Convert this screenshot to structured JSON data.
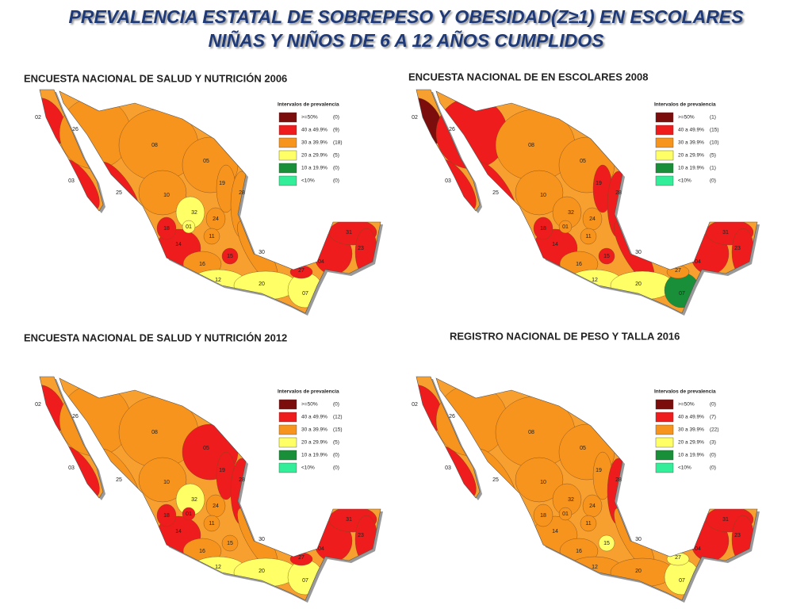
{
  "header": {
    "title_line1": "PREVALENCIA ESTATAL DE SOBREPESO Y OBESIDAD(Z≥1) EN  ESCOLARES",
    "title_line2": "NIÑAS Y NIÑOS DE 6 A 12 AÑOS CUMPLIDOS"
  },
  "maps": [
    {
      "title": "ENCUESTA NACIONAL DE SALUD Y NUTRICIÓN 2006",
      "legend_title": "Intervalos de prevalencia",
      "legend": [
        {
          "label": ">=50%",
          "count": "(0)",
          "color": "#7b0d0d"
        },
        {
          "label": "40 a 49.9%",
          "count": "(9)",
          "color": "#ee1c1c"
        },
        {
          "label": "30 a 39.9%",
          "count": "(18)",
          "color": "#f7941d"
        },
        {
          "label": "20 a 29.9%",
          "count": "(5)",
          "color": "#ffff66"
        },
        {
          "label": "10 a 19.9%",
          "count": "(0)",
          "color": "#1a8f3a"
        },
        {
          "label": "<10%",
          "count": "(0)",
          "color": "#33ee99"
        }
      ],
      "states": [
        {
          "label": "02",
          "color": "#ee1c1c"
        },
        {
          "label": "03",
          "color": "#ee1c1c"
        },
        {
          "label": "26",
          "color": "#f7941d"
        },
        {
          "label": "25",
          "color": "#ee1c1c"
        },
        {
          "label": "08",
          "color": "#f7941d"
        },
        {
          "label": "10",
          "color": "#f7941d"
        },
        {
          "label": "05",
          "color": "#f7941d"
        },
        {
          "label": "19",
          "color": "#f7941d"
        },
        {
          "label": "28",
          "color": "#f7941d"
        },
        {
          "label": "32",
          "color": "#ffff66"
        },
        {
          "label": "24",
          "color": "#f7941d"
        },
        {
          "label": "14",
          "color": "#ee1c1c"
        },
        {
          "label": "16",
          "color": "#f7941d"
        },
        {
          "label": "11",
          "color": "#f7941d"
        },
        {
          "label": "15",
          "color": "#ee1c1c"
        },
        {
          "label": "30",
          "color": "#f7941d"
        },
        {
          "label": "12",
          "color": "#ffff66"
        },
        {
          "label": "20",
          "color": "#ffff66"
        },
        {
          "label": "07",
          "color": "#ffff66"
        },
        {
          "label": "27",
          "color": "#ee1c1c"
        },
        {
          "label": "04",
          "color": "#ee1c1c"
        },
        {
          "label": "31",
          "color": "#ee1c1c"
        },
        {
          "label": "23",
          "color": "#ee1c1c"
        },
        {
          "label": "18",
          "color": "#ee1c1c"
        },
        {
          "label": "01",
          "color": "#ffff66"
        }
      ]
    },
    {
      "title": "ENCUESTA NACIONAL DE EN ESCOLARES 2008",
      "legend_title": "Intervalos de prevalencia",
      "legend": [
        {
          "label": ">=50%",
          "count": "(1)",
          "color": "#7b0d0d"
        },
        {
          "label": "40 a 49.9%",
          "count": "(15)",
          "color": "#ee1c1c"
        },
        {
          "label": "30 a 39.9%",
          "count": "(10)",
          "color": "#f7941d"
        },
        {
          "label": "20 a 29.9%",
          "count": "(5)",
          "color": "#ffff66"
        },
        {
          "label": "10 a 19.9%",
          "count": "(1)",
          "color": "#1a8f3a"
        },
        {
          "label": "<10%",
          "count": "(0)",
          "color": "#33ee99"
        }
      ],
      "states": [
        {
          "label": "02",
          "color": "#7b0d0d"
        },
        {
          "label": "03",
          "color": "#ee1c1c"
        },
        {
          "label": "26",
          "color": "#ee1c1c"
        },
        {
          "label": "25",
          "color": "#ee1c1c"
        },
        {
          "label": "08",
          "color": "#f7941d"
        },
        {
          "label": "10",
          "color": "#f7941d"
        },
        {
          "label": "05",
          "color": "#f7941d"
        },
        {
          "label": "19",
          "color": "#ee1c1c"
        },
        {
          "label": "28",
          "color": "#ee1c1c"
        },
        {
          "label": "32",
          "color": "#f7941d"
        },
        {
          "label": "24",
          "color": "#f7941d"
        },
        {
          "label": "14",
          "color": "#ee1c1c"
        },
        {
          "label": "16",
          "color": "#f7941d"
        },
        {
          "label": "11",
          "color": "#f7941d"
        },
        {
          "label": "15",
          "color": "#ee1c1c"
        },
        {
          "label": "30",
          "color": "#ee1c1c"
        },
        {
          "label": "12",
          "color": "#ffff66"
        },
        {
          "label": "20",
          "color": "#ffff66"
        },
        {
          "label": "07",
          "color": "#1a8f3a"
        },
        {
          "label": "27",
          "color": "#f7941d"
        },
        {
          "label": "04",
          "color": "#ee1c1c"
        },
        {
          "label": "31",
          "color": "#ee1c1c"
        },
        {
          "label": "23",
          "color": "#ee1c1c"
        },
        {
          "label": "18",
          "color": "#ee1c1c"
        },
        {
          "label": "01",
          "color": "#f7941d"
        }
      ]
    },
    {
      "title": "ENCUESTA NACIONAL DE SALUD Y NUTRICIÓN 2012",
      "legend_title": "Intervalos de prevalencia",
      "legend": [
        {
          "label": ">=50%",
          "count": "(0)",
          "color": "#7b0d0d"
        },
        {
          "label": "40 a 49.9%",
          "count": "(12)",
          "color": "#ee1c1c"
        },
        {
          "label": "30 a 39.9%",
          "count": "(15)",
          "color": "#f7941d"
        },
        {
          "label": "20 a 29.9%",
          "count": "(5)",
          "color": "#ffff66"
        },
        {
          "label": "10 a 19.9%",
          "count": "(0)",
          "color": "#1a8f3a"
        },
        {
          "label": "<10%",
          "count": "(0)",
          "color": "#33ee99"
        }
      ],
      "states": [
        {
          "label": "02",
          "color": "#ee1c1c"
        },
        {
          "label": "03",
          "color": "#ee1c1c"
        },
        {
          "label": "26",
          "color": "#f7941d"
        },
        {
          "label": "25",
          "color": "#f7941d"
        },
        {
          "label": "08",
          "color": "#f7941d"
        },
        {
          "label": "10",
          "color": "#f7941d"
        },
        {
          "label": "05",
          "color": "#ee1c1c"
        },
        {
          "label": "19",
          "color": "#ee1c1c"
        },
        {
          "label": "28",
          "color": "#ee1c1c"
        },
        {
          "label": "32",
          "color": "#ffff66"
        },
        {
          "label": "24",
          "color": "#f7941d"
        },
        {
          "label": "14",
          "color": "#ee1c1c"
        },
        {
          "label": "16",
          "color": "#f7941d"
        },
        {
          "label": "11",
          "color": "#f7941d"
        },
        {
          "label": "15",
          "color": "#f7941d"
        },
        {
          "label": "30",
          "color": "#f7941d"
        },
        {
          "label": "12",
          "color": "#ffff66"
        },
        {
          "label": "20",
          "color": "#ffff66"
        },
        {
          "label": "07",
          "color": "#ffff66"
        },
        {
          "label": "27",
          "color": "#ee1c1c"
        },
        {
          "label": "04",
          "color": "#ee1c1c"
        },
        {
          "label": "31",
          "color": "#ee1c1c"
        },
        {
          "label": "23",
          "color": "#ee1c1c"
        },
        {
          "label": "18",
          "color": "#ee1c1c"
        },
        {
          "label": "01",
          "color": "#ee1c1c"
        }
      ]
    },
    {
      "title": "REGISTRO NACIONAL DE PESO Y TALLA 2016",
      "legend_title": "Intervalos de prevalencia",
      "legend": [
        {
          "label": ">=50%",
          "count": "(0)",
          "color": "#7b0d0d"
        },
        {
          "label": "40 a 49.9%",
          "count": "(7)",
          "color": "#ee1c1c"
        },
        {
          "label": "30 a 39.9%",
          "count": "(22)",
          "color": "#f7941d"
        },
        {
          "label": "20 a 29.9%",
          "count": "(3)",
          "color": "#ffff66"
        },
        {
          "label": "10 a 19.9%",
          "count": "(0)",
          "color": "#1a8f3a"
        },
        {
          "label": "<10%",
          "count": "(0)",
          "color": "#33ee99"
        }
      ],
      "states": [
        {
          "label": "02",
          "color": "#ee1c1c"
        },
        {
          "label": "03",
          "color": "#ee1c1c"
        },
        {
          "label": "26",
          "color": "#f7941d"
        },
        {
          "label": "25",
          "color": "#f7941d"
        },
        {
          "label": "08",
          "color": "#f7941d"
        },
        {
          "label": "10",
          "color": "#f7941d"
        },
        {
          "label": "05",
          "color": "#f7941d"
        },
        {
          "label": "19",
          "color": "#f7941d"
        },
        {
          "label": "28",
          "color": "#ee1c1c"
        },
        {
          "label": "32",
          "color": "#f7941d"
        },
        {
          "label": "24",
          "color": "#f7941d"
        },
        {
          "label": "14",
          "color": "#f7941d"
        },
        {
          "label": "16",
          "color": "#f7941d"
        },
        {
          "label": "11",
          "color": "#f7941d"
        },
        {
          "label": "15",
          "color": "#ffff66"
        },
        {
          "label": "30",
          "color": "#f7941d"
        },
        {
          "label": "12",
          "color": "#f7941d"
        },
        {
          "label": "20",
          "color": "#f7941d"
        },
        {
          "label": "07",
          "color": "#ffff66"
        },
        {
          "label": "27",
          "color": "#ffff66"
        },
        {
          "label": "04",
          "color": "#ee1c1c"
        },
        {
          "label": "31",
          "color": "#ee1c1c"
        },
        {
          "label": "23",
          "color": "#ee1c1c"
        },
        {
          "label": "18",
          "color": "#f7941d"
        },
        {
          "label": "01",
          "color": "#f7941d"
        }
      ]
    }
  ]
}
